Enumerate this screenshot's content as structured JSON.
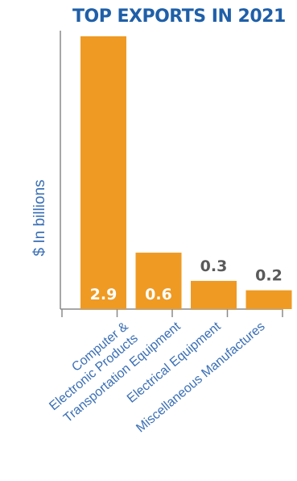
{
  "chart_data": {
    "type": "bar",
    "title": "TOP EXPORTS IN 2021",
    "xlabel": "",
    "ylabel": "$ In billions",
    "categories": [
      "Computer & Electronic Products",
      "Transportation Equipment",
      "Electrical Equipment",
      "Miscellaneous Manufactures"
    ],
    "category_lines": [
      [
        "Computer &",
        "Electronic Products"
      ],
      [
        "Transportation Equipment"
      ],
      [
        "Electrical Equipment"
      ],
      [
        "Miscellaneous Manufactures"
      ]
    ],
    "values": [
      2.9,
      0.6,
      0.3,
      0.2
    ],
    "value_labels": [
      "2.9",
      "0.6",
      "0.3",
      "0.2"
    ],
    "ylim": [
      0,
      2.9
    ],
    "grid": false,
    "legend": "none",
    "colors": {
      "bar": "#ef9a23",
      "title": "#1f5fa8",
      "axis_text": "#3a6fb5",
      "label_inside": "#ffffff",
      "label_outside": "#5a5a5a",
      "axis": "#8a8a8a"
    }
  }
}
